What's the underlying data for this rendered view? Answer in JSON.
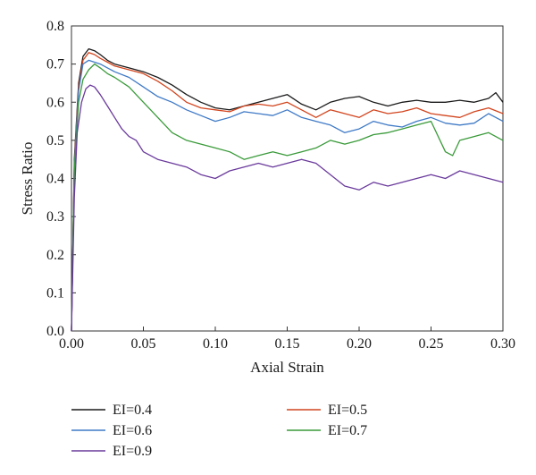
{
  "chart_data": {
    "type": "line",
    "title": "",
    "xlabel": "Axial Strain",
    "ylabel": "Stress Ratio",
    "xlim": [
      0,
      0.3
    ],
    "ylim": [
      0,
      0.8
    ],
    "x_ticks": [
      "0.00",
      "0.05",
      "0.10",
      "0.15",
      "0.20",
      "0.25",
      "0.30"
    ],
    "y_ticks": [
      "0.0",
      "0.1",
      "0.2",
      "0.3",
      "0.4",
      "0.5",
      "0.6",
      "0.7",
      "0.8"
    ],
    "grid": false,
    "legend_position": "bottom",
    "series": [
      {
        "name": "EI=0.4",
        "color": "#1a1a1a",
        "x": [
          0,
          0.002,
          0.005,
          0.008,
          0.012,
          0.016,
          0.02,
          0.025,
          0.03,
          0.04,
          0.05,
          0.06,
          0.07,
          0.08,
          0.09,
          0.1,
          0.11,
          0.12,
          0.13,
          0.14,
          0.15,
          0.16,
          0.17,
          0.18,
          0.19,
          0.2,
          0.21,
          0.22,
          0.23,
          0.24,
          0.25,
          0.26,
          0.27,
          0.28,
          0.29,
          0.295,
          0.3
        ],
        "values": [
          0,
          0.45,
          0.65,
          0.72,
          0.74,
          0.735,
          0.725,
          0.71,
          0.7,
          0.69,
          0.68,
          0.665,
          0.645,
          0.62,
          0.6,
          0.585,
          0.58,
          0.59,
          0.6,
          0.61,
          0.62,
          0.595,
          0.58,
          0.6,
          0.61,
          0.615,
          0.6,
          0.59,
          0.6,
          0.605,
          0.6,
          0.6,
          0.605,
          0.6,
          0.61,
          0.625,
          0.6
        ]
      },
      {
        "name": "EI=0.5",
        "color": "#d2451e",
        "x": [
          0,
          0.002,
          0.005,
          0.008,
          0.012,
          0.016,
          0.02,
          0.025,
          0.03,
          0.04,
          0.05,
          0.06,
          0.07,
          0.08,
          0.09,
          0.1,
          0.11,
          0.12,
          0.13,
          0.14,
          0.15,
          0.16,
          0.17,
          0.18,
          0.19,
          0.2,
          0.21,
          0.22,
          0.23,
          0.24,
          0.25,
          0.26,
          0.27,
          0.28,
          0.29,
          0.3
        ],
        "values": [
          0,
          0.44,
          0.64,
          0.71,
          0.73,
          0.725,
          0.715,
          0.705,
          0.695,
          0.685,
          0.675,
          0.655,
          0.63,
          0.6,
          0.585,
          0.58,
          0.575,
          0.59,
          0.595,
          0.59,
          0.6,
          0.58,
          0.56,
          0.58,
          0.57,
          0.56,
          0.58,
          0.57,
          0.575,
          0.585,
          0.57,
          0.565,
          0.56,
          0.575,
          0.585,
          0.57
        ]
      },
      {
        "name": "EI=0.6",
        "color": "#3f7ac6",
        "x": [
          0,
          0.002,
          0.005,
          0.008,
          0.012,
          0.016,
          0.02,
          0.025,
          0.03,
          0.04,
          0.05,
          0.06,
          0.07,
          0.08,
          0.09,
          0.1,
          0.11,
          0.12,
          0.13,
          0.14,
          0.15,
          0.16,
          0.17,
          0.18,
          0.19,
          0.2,
          0.21,
          0.22,
          0.23,
          0.24,
          0.25,
          0.26,
          0.27,
          0.28,
          0.29,
          0.3
        ],
        "values": [
          0,
          0.43,
          0.63,
          0.7,
          0.71,
          0.705,
          0.7,
          0.69,
          0.68,
          0.665,
          0.64,
          0.615,
          0.6,
          0.58,
          0.565,
          0.55,
          0.56,
          0.575,
          0.57,
          0.565,
          0.58,
          0.56,
          0.55,
          0.54,
          0.52,
          0.53,
          0.55,
          0.54,
          0.535,
          0.55,
          0.56,
          0.545,
          0.54,
          0.545,
          0.57,
          0.55
        ]
      },
      {
        "name": "EI=0.7",
        "color": "#3a9a3a",
        "x": [
          0,
          0.002,
          0.005,
          0.008,
          0.012,
          0.016,
          0.02,
          0.025,
          0.03,
          0.04,
          0.05,
          0.055,
          0.06,
          0.07,
          0.08,
          0.09,
          0.1,
          0.11,
          0.12,
          0.13,
          0.14,
          0.15,
          0.16,
          0.17,
          0.18,
          0.19,
          0.2,
          0.21,
          0.22,
          0.23,
          0.24,
          0.25,
          0.26,
          0.265,
          0.27,
          0.28,
          0.29,
          0.3
        ],
        "values": [
          0,
          0.42,
          0.6,
          0.66,
          0.685,
          0.7,
          0.69,
          0.675,
          0.665,
          0.64,
          0.6,
          0.58,
          0.56,
          0.52,
          0.5,
          0.49,
          0.48,
          0.47,
          0.45,
          0.46,
          0.47,
          0.46,
          0.47,
          0.48,
          0.5,
          0.49,
          0.5,
          0.515,
          0.52,
          0.53,
          0.54,
          0.55,
          0.47,
          0.46,
          0.5,
          0.51,
          0.52,
          0.5
        ]
      },
      {
        "name": "EI=0.9",
        "color": "#6a3a9c",
        "x": [
          0,
          0.002,
          0.004,
          0.007,
          0.01,
          0.013,
          0.016,
          0.02,
          0.025,
          0.03,
          0.035,
          0.04,
          0.045,
          0.05,
          0.06,
          0.07,
          0.08,
          0.09,
          0.1,
          0.11,
          0.12,
          0.13,
          0.14,
          0.15,
          0.16,
          0.17,
          0.18,
          0.19,
          0.2,
          0.21,
          0.22,
          0.23,
          0.24,
          0.25,
          0.26,
          0.27,
          0.28,
          0.29,
          0.3
        ],
        "values": [
          0,
          0.35,
          0.52,
          0.6,
          0.635,
          0.645,
          0.64,
          0.62,
          0.59,
          0.56,
          0.53,
          0.51,
          0.5,
          0.47,
          0.45,
          0.44,
          0.43,
          0.41,
          0.4,
          0.42,
          0.43,
          0.44,
          0.43,
          0.44,
          0.45,
          0.44,
          0.41,
          0.38,
          0.37,
          0.39,
          0.38,
          0.39,
          0.4,
          0.41,
          0.4,
          0.42,
          0.41,
          0.4,
          0.39
        ]
      }
    ]
  }
}
